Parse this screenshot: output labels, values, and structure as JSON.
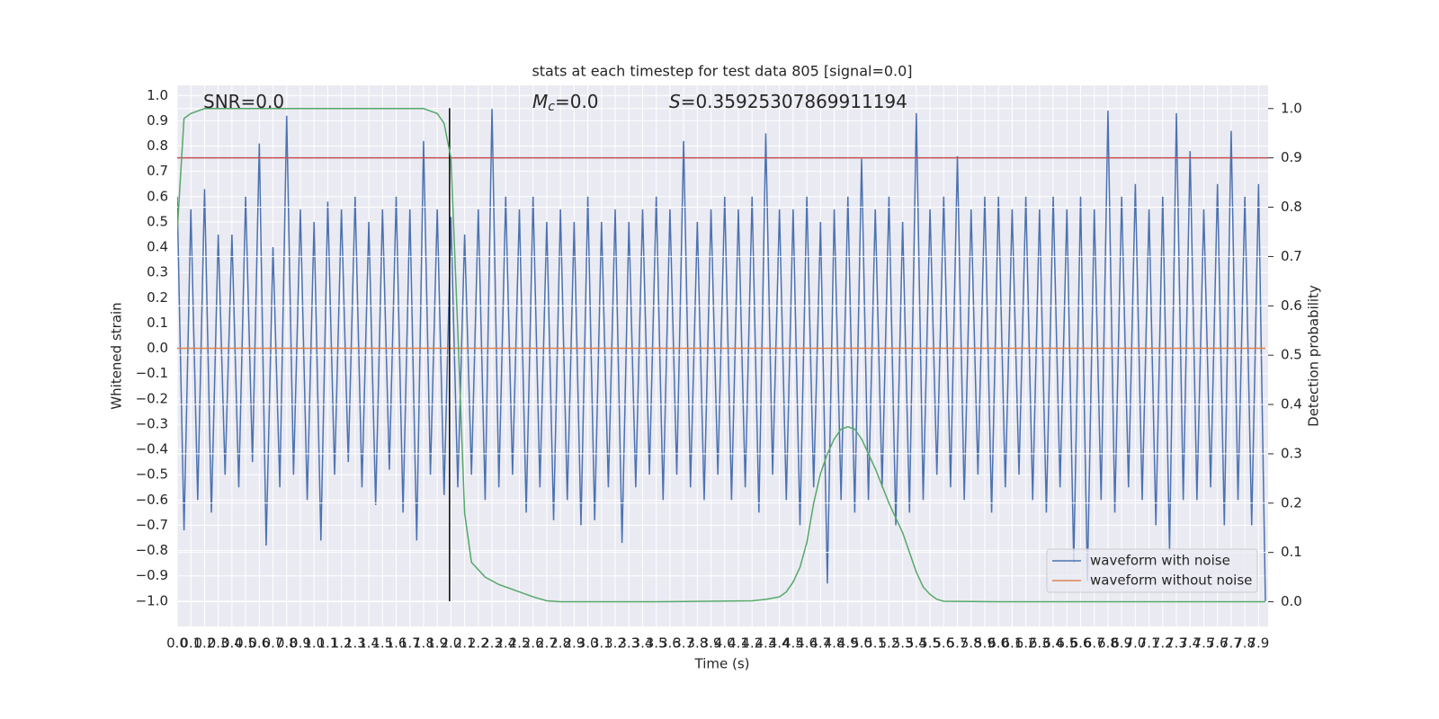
{
  "chart_data": {
    "type": "line",
    "title": "stats at each timestep for test data 805 [signal=0.0]",
    "xlabel": "Time (s)",
    "ylabel": "Whitened strain",
    "y2label": "Detection probability",
    "annotations": [
      [
        {
          "text": "SNR=0.0",
          "style": "normal"
        }
      ],
      [
        {
          "text": "M",
          "style": "italic"
        },
        {
          "text": "c",
          "style": "sub"
        },
        {
          "text": "=0.0",
          "style": "normal"
        }
      ],
      [
        {
          "text": "S",
          "style": "italic"
        },
        {
          "text": "=0.35925307869911194",
          "style": "normal"
        }
      ]
    ],
    "xlim": [
      0,
      7.97
    ],
    "ylim": [
      -1.1,
      1.04
    ],
    "y2lim": [
      -0.05,
      1.047
    ],
    "grid": true,
    "y2grid": true,
    "legend": "lower right",
    "xticks": [
      {
        "value": 0,
        "label": "0.0"
      },
      0.1,
      0.2,
      0.3,
      0.4,
      0.5,
      0.6,
      0.7,
      0.8,
      0.9,
      {
        "value": 1,
        "label": "1.0"
      },
      1.1,
      1.2,
      1.3,
      1.4,
      1.5,
      1.6,
      1.7,
      1.8,
      1.9,
      {
        "value": 2,
        "label": "2.0"
      },
      2.1,
      2.2,
      2.3,
      2.4,
      2.5,
      2.6,
      2.7,
      2.8,
      2.9,
      {
        "value": 3,
        "label": "3.0"
      },
      3.1,
      3.2,
      3.3,
      3.4,
      3.5,
      3.6,
      3.7,
      3.8,
      3.9,
      {
        "value": 4,
        "label": "4.0"
      },
      4.1,
      4.2,
      4.3,
      4.4,
      4.5,
      4.6,
      4.7,
      4.8,
      4.9,
      {
        "value": 5,
        "label": "5.0"
      },
      5.1,
      5.2,
      5.3,
      5.4,
      5.5,
      5.6,
      5.7,
      5.8,
      5.9,
      {
        "value": 6,
        "label": "6.0"
      },
      6.1,
      6.2,
      6.3,
      6.4,
      6.5,
      6.6,
      6.7,
      6.8,
      6.9,
      {
        "value": 7,
        "label": "7.0"
      },
      7.1,
      7.2,
      7.3,
      7.4,
      7.5,
      7.6,
      7.7,
      7.8,
      7.9
    ],
    "yticks": [
      {
        "value": -1,
        "label": "−1.0"
      },
      {
        "value": -0.9,
        "label": "−0.9"
      },
      {
        "value": -0.8,
        "label": "−0.8"
      },
      {
        "value": -0.7,
        "label": "−0.7"
      },
      {
        "value": -0.6,
        "label": "−0.6"
      },
      {
        "value": -0.5,
        "label": "−0.5"
      },
      {
        "value": -0.4,
        "label": "−0.4"
      },
      {
        "value": -0.3,
        "label": "−0.3"
      },
      {
        "value": -0.2,
        "label": "−0.2"
      },
      {
        "value": -0.1,
        "label": "−0.1"
      },
      {
        "value": 0,
        "label": "0.0"
      },
      0.1,
      0.2,
      0.3,
      0.4,
      0.5,
      0.6,
      0.7,
      0.8,
      0.9,
      {
        "value": 1,
        "label": "1.0"
      }
    ],
    "y2ticks": [
      {
        "value": 0,
        "label": "0.0"
      },
      0.1,
      0.2,
      0.3,
      0.4,
      0.5,
      0.6,
      0.7,
      0.8,
      0.9,
      {
        "value": 1,
        "label": "1.0"
      }
    ],
    "series": [
      {
        "name": "waveform with noise",
        "color": "#4c72b0",
        "x": [
          0,
          0.05,
          0.1,
          0.15,
          0.2,
          0.25,
          0.3,
          0.35,
          0.4,
          0.45,
          0.5,
          0.55,
          0.6,
          0.65,
          0.7,
          0.75,
          0.8,
          0.85,
          0.9,
          0.95,
          1,
          1.05,
          1.1,
          1.15,
          1.2,
          1.25,
          1.3,
          1.35,
          1.4,
          1.45,
          1.5,
          1.55,
          1.6,
          1.65,
          1.7,
          1.75,
          1.8,
          1.85,
          1.9,
          1.95,
          2,
          2.05,
          2.1,
          2.15,
          2.2,
          2.25,
          2.3,
          2.35,
          2.4,
          2.45,
          2.5,
          2.55,
          2.6,
          2.65,
          2.7,
          2.75,
          2.8,
          2.85,
          2.9,
          2.95,
          3,
          3.05,
          3.1,
          3.15,
          3.2,
          3.25,
          3.3,
          3.35,
          3.4,
          3.45,
          3.5,
          3.55,
          3.6,
          3.65,
          3.7,
          3.75,
          3.8,
          3.85,
          3.9,
          3.95,
          4,
          4.05,
          4.1,
          4.15,
          4.2,
          4.25,
          4.3,
          4.35,
          4.4,
          4.45,
          4.5,
          4.55,
          4.6,
          4.65,
          4.7,
          4.75,
          4.8,
          4.85,
          4.9,
          4.95,
          5,
          5.05,
          5.1,
          5.15,
          5.2,
          5.25,
          5.3,
          5.35,
          5.4,
          5.45,
          5.5,
          5.55,
          5.6,
          5.65,
          5.7,
          5.75,
          5.8,
          5.85,
          5.9,
          5.95,
          6,
          6.05,
          6.1,
          6.15,
          6.2,
          6.25,
          6.3,
          6.35,
          6.4,
          6.45,
          6.5,
          6.55,
          6.6,
          6.65,
          6.7,
          6.75,
          6.8,
          6.85,
          6.9,
          6.95,
          7,
          7.05,
          7.1,
          7.15,
          7.2,
          7.25,
          7.3,
          7.35,
          7.4,
          7.45,
          7.5,
          7.55,
          7.6,
          7.65,
          7.7,
          7.75,
          7.8,
          7.85,
          7.9,
          7.95
        ],
        "values": [
          0.6,
          -0.72,
          0.55,
          -0.6,
          0.63,
          -0.65,
          0.45,
          -0.5,
          0.45,
          -0.55,
          0.6,
          -0.45,
          0.81,
          -0.78,
          0.4,
          -0.55,
          0.92,
          -0.5,
          0.55,
          -0.6,
          0.5,
          -0.76,
          0.58,
          -0.5,
          0.55,
          -0.45,
          0.6,
          -0.55,
          0.5,
          -0.62,
          0.55,
          -0.48,
          0.6,
          -0.65,
          0.55,
          -0.76,
          0.82,
          -0.5,
          0.55,
          -0.58,
          0.52,
          -0.55,
          0.45,
          -0.5,
          0.55,
          -0.6,
          0.95,
          -0.55,
          0.6,
          -0.5,
          0.55,
          -0.65,
          0.6,
          -0.55,
          0.5,
          -0.68,
          0.55,
          -0.6,
          0.5,
          -0.7,
          0.6,
          -0.68,
          0.5,
          -0.55,
          0.55,
          -0.77,
          0.5,
          -0.55,
          0.55,
          -0.5,
          0.6,
          -0.6,
          0.55,
          -0.5,
          0.82,
          -0.55,
          0.5,
          -0.6,
          0.55,
          -0.5,
          0.6,
          -0.6,
          0.55,
          -0.55,
          0.6,
          -0.65,
          0.85,
          -0.5,
          0.55,
          -0.6,
          0.55,
          -0.7,
          0.6,
          -0.55,
          0.5,
          -0.93,
          0.55,
          -0.6,
          0.6,
          -0.65,
          0.75,
          -0.6,
          0.55,
          -0.55,
          0.6,
          -0.7,
          0.5,
          -0.65,
          0.93,
          -0.6,
          0.55,
          -0.5,
          0.6,
          -0.55,
          0.76,
          -0.6,
          0.55,
          -0.5,
          0.6,
          -0.65,
          0.6,
          -0.55,
          0.55,
          -0.5,
          0.6,
          -0.6,
          0.55,
          -0.65,
          0.6,
          -0.55,
          0.55,
          -0.85,
          0.6,
          -0.92,
          0.55,
          -0.6,
          0.94,
          -0.65,
          0.6,
          -0.55,
          0.65,
          -0.6,
          0.55,
          -0.7,
          0.6,
          -0.8,
          0.93,
          -0.6,
          0.78,
          -0.6,
          0.55,
          -0.55,
          0.65,
          -0.7,
          0.86,
          -0.6,
          0.6,
          -0.7,
          0.65,
          -1.0
        ]
      },
      {
        "name": "waveform without noise",
        "color": "#dd8452",
        "x": [
          0,
          7.95
        ],
        "values": [
          0,
          0
        ]
      },
      {
        "color": "#55a868",
        "axis": "y2",
        "x": [
          0,
          0.05,
          0.1,
          0.2,
          0.5,
          1,
          1.5,
          1.8,
          1.85,
          1.9,
          1.95,
          2,
          2.05,
          2.1,
          2.15,
          2.25,
          2.35,
          2.5,
          2.6,
          2.7,
          2.8,
          3.5,
          4.2,
          4.3,
          4.4,
          4.45,
          4.5,
          4.55,
          4.6,
          4.65,
          4.7,
          4.75,
          4.8,
          4.85,
          4.9,
          4.95,
          5,
          5.05,
          5.1,
          5.2,
          5.3,
          5.35,
          5.4,
          5.45,
          5.5,
          5.55,
          5.6,
          6,
          7,
          7.95
        ],
        "values": [
          0.75,
          0.98,
          0.99,
          1,
          1,
          1,
          1,
          1,
          0.995,
          0.99,
          0.97,
          0.9,
          0.55,
          0.18,
          0.08,
          0.05,
          0.035,
          0.02,
          0.01,
          0.002,
          0,
          0,
          0.002,
          0.005,
          0.01,
          0.02,
          0.04,
          0.07,
          0.12,
          0.2,
          0.26,
          0.3,
          0.33,
          0.35,
          0.355,
          0.35,
          0.33,
          0.3,
          0.27,
          0.2,
          0.14,
          0.1,
          0.06,
          0.03,
          0.015,
          0.005,
          0.001,
          0,
          0,
          0
        ]
      }
    ],
    "hlines": [
      {
        "y": 0.9,
        "axis": "y2",
        "color": "#c44e52"
      }
    ],
    "vlines": [
      {
        "x": 1.99,
        "ymin": -1,
        "ymax": 0.95,
        "color": "#000000"
      }
    ]
  }
}
